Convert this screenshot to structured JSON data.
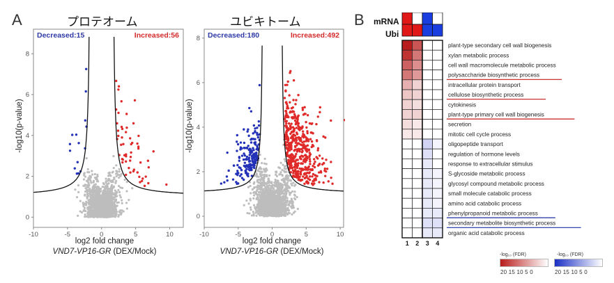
{
  "panel_a": {
    "letter": "A",
    "proteome_title": "プロテオーム",
    "ubiquitome_title": "ユビキトーム"
  },
  "panel_b": {
    "letter": "B",
    "row_mrna": "mRNA",
    "row_ubi": "Ubi"
  },
  "chart_data": [
    {
      "type": "scatter",
      "title": "プロテオーム",
      "xlabel": "log2 fold change",
      "xlabel_gene": "VND7-VP16-GR",
      "xlabel_suffix": " (DEX/Mock)",
      "ylabel": "-log10(p-value)",
      "xlim": [
        -10,
        12
      ],
      "ylim": [
        -0.5,
        9.2
      ],
      "xticks": [
        -10,
        -5,
        0,
        5,
        10
      ],
      "yticks": [
        0,
        2,
        4,
        6,
        8
      ],
      "decreased_label": "Decreased:15",
      "increased_label": "Increased:56",
      "decreased_count": 15,
      "increased_count": 56,
      "threshold": {
        "x0": 1.6,
        "c": 1.8,
        "base": 1.0
      },
      "series": [
        {
          "name": "Decreased",
          "color": "#2432b8",
          "count": 15
        },
        {
          "name": "Increased",
          "color": "#e02a2a",
          "count": 56
        },
        {
          "name": "Not significant",
          "color": "#b9b9b9"
        }
      ],
      "grid": false
    },
    {
      "type": "scatter",
      "title": "ユビキトーム",
      "xlabel": "log2 fold change",
      "xlabel_gene": "VND7-VP16-GR",
      "xlabel_suffix": " (DEX/Mock)",
      "ylabel": "-log10(p-value)",
      "xlim": [
        -10,
        10.5
      ],
      "ylim": [
        -0.5,
        8.4
      ],
      "xticks": [
        -10,
        -5,
        0,
        5,
        10
      ],
      "yticks": [
        0,
        2,
        4,
        6,
        8
      ],
      "decreased_label": "Decreased:180",
      "increased_label": "Increased:492",
      "decreased_count": 180,
      "increased_count": 492,
      "threshold": {
        "x0": 1.3,
        "c": 1.2,
        "base": 1.0
      },
      "series": [
        {
          "name": "Decreased",
          "color": "#2432b8",
          "count": 180
        },
        {
          "name": "Increased",
          "color": "#e02a2a",
          "count": 492
        },
        {
          "name": "Not significant",
          "color": "#b9b9b9"
        }
      ],
      "grid": false
    },
    {
      "type": "heatmap",
      "columns": [
        "1",
        "2",
        "3",
        "4"
      ],
      "header": [
        {
          "row": "mRNA",
          "cells": [
            "#e01818",
            "#ffffff",
            "#1a3de0",
            "#ffffff"
          ]
        },
        {
          "row": "Ubi",
          "cells": [
            "#e01818",
            "#e01818",
            "#1a3de0",
            "#1a3de0"
          ]
        }
      ],
      "rows": [
        {
          "term": "plant-type secondary cell wall biogenesis",
          "values": [
            20,
            15,
            0,
            0
          ],
          "underline": ""
        },
        {
          "term": "xylan metabolic process",
          "values": [
            18,
            12,
            0,
            0
          ],
          "underline": ""
        },
        {
          "term": "cell wall macromolecule metabolic process",
          "values": [
            14,
            10,
            0,
            0
          ],
          "underline": ""
        },
        {
          "term": "polysaccharide biosynthetic process",
          "values": [
            12,
            9,
            0,
            0
          ],
          "underline": "red"
        },
        {
          "term": "intracellular protein transport",
          "values": [
            7,
            4,
            0,
            0
          ],
          "underline": ""
        },
        {
          "term": "cellulose biosynthetic process",
          "values": [
            5,
            4,
            0,
            0
          ],
          "underline": "red"
        },
        {
          "term": "cytokinesis",
          "values": [
            4,
            3,
            0,
            0
          ],
          "underline": ""
        },
        {
          "term": "plant-type primary cell wall biogenesis",
          "values": [
            4,
            4,
            0,
            0
          ],
          "underline": "red"
        },
        {
          "term": "secretion",
          "values": [
            3,
            2,
            0,
            0
          ],
          "underline": ""
        },
        {
          "term": "mitotic cell cycle process",
          "values": [
            2,
            2,
            0,
            0
          ],
          "underline": ""
        },
        {
          "term": "oligopeptide transport",
          "values": [
            0,
            0,
            4,
            1
          ],
          "underline": ""
        },
        {
          "term": "regulation of hormone levels",
          "values": [
            0,
            0,
            3,
            0
          ],
          "underline": ""
        },
        {
          "term": "response to extracellular stimulus",
          "values": [
            0,
            0,
            2,
            0
          ],
          "underline": ""
        },
        {
          "term": "S-glycoside metabolic process",
          "values": [
            0,
            0,
            2,
            1
          ],
          "underline": ""
        },
        {
          "term": "glycosyl compound metabolic process",
          "values": [
            0,
            0,
            2,
            1
          ],
          "underline": ""
        },
        {
          "term": "small molecule catabolic process",
          "values": [
            0,
            0,
            2,
            1
          ],
          "underline": ""
        },
        {
          "term": "amino acid catabolic process",
          "values": [
            0,
            0,
            2,
            1
          ],
          "underline": ""
        },
        {
          "term": "phenylpropanoid metabolic process",
          "values": [
            0,
            0,
            2,
            2
          ],
          "underline": "blue"
        },
        {
          "term": "secondary metabolite biosynthetic process",
          "values": [
            0,
            0,
            3,
            3
          ],
          "underline": "blue"
        },
        {
          "term": "organic acid catabolic process",
          "values": [
            0,
            0,
            2,
            2
          ],
          "underline": ""
        }
      ],
      "legend_red": {
        "title": "-log₁₀ (FDR)",
        "ticks": "20 15 10 5 0",
        "color": "#b81c1c",
        "max": 20
      },
      "legend_blue": {
        "title": "-log₁₀ (FDR)",
        "ticks": "20 15 10 5 0",
        "color": "#1a2fc4",
        "max": 20
      }
    }
  ]
}
